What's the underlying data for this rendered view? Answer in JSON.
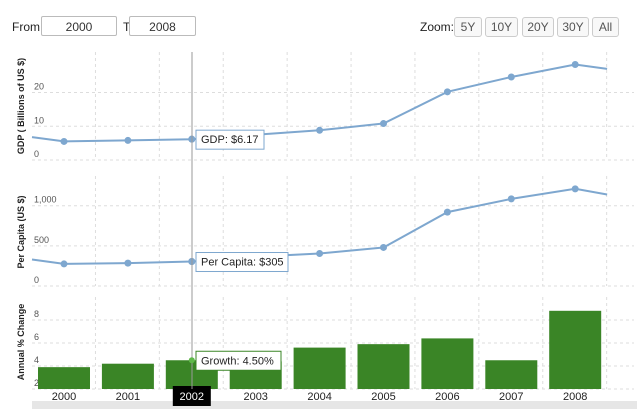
{
  "range": {
    "from_label": "From:",
    "from_value": "2000",
    "to_label": "To:",
    "to_value": "2008"
  },
  "zoom": {
    "label": "Zoom:",
    "buttons": [
      "5Y",
      "10Y",
      "20Y",
      "30Y",
      "All"
    ]
  },
  "colors": {
    "line": "#7ea7cf",
    "bar": "#3a8526",
    "grid": "#dddddd",
    "crosshair": "#999999"
  },
  "chart_data": [
    {
      "type": "line",
      "ylabel": "GDP ( Billions of US $)",
      "ylim": [
        0,
        32
      ],
      "yticks": [
        0,
        10,
        20
      ],
      "x": [
        1999.5,
        2000,
        2001,
        2002,
        2003,
        2004,
        2005,
        2006,
        2007,
        2008,
        2008.5
      ],
      "values": [
        6.8,
        5.5,
        5.8,
        6.17,
        7.5,
        8.8,
        10.8,
        20.2,
        24.6,
        28.3,
        27.0
      ],
      "marker_x": [
        2000,
        2001,
        2002,
        2004,
        2005,
        2006,
        2007,
        2008
      ],
      "tooltip": "GDP: $6.17"
    },
    {
      "type": "line",
      "ylabel": "Per Capita (US $)",
      "ylim": [
        0,
        1370
      ],
      "yticks": [
        0,
        500,
        1000
      ],
      "x": [
        1999.5,
        2000,
        2001,
        2002,
        2003,
        2004,
        2005,
        2006,
        2007,
        2008,
        2008.5
      ],
      "values": [
        330,
        275,
        285,
        305,
        365,
        405,
        480,
        920,
        1085,
        1210,
        1140
      ],
      "marker_x": [
        2000,
        2001,
        2002,
        2004,
        2005,
        2006,
        2007,
        2008
      ],
      "tooltip": "Per Capita: $305"
    },
    {
      "type": "bar",
      "ylabel": "Annual % Change",
      "ylim": [
        2,
        10
      ],
      "yticks": [
        2,
        4,
        6,
        8
      ],
      "categories": [
        "2000",
        "2001",
        "2002",
        "2003",
        "2004",
        "2005",
        "2006",
        "2007",
        "2008"
      ],
      "values": [
        3.9,
        4.2,
        4.5,
        4.4,
        5.6,
        5.9,
        6.4,
        4.5,
        8.8
      ],
      "tooltip": "Growth: 4.50%"
    }
  ],
  "x_axis": {
    "labels": [
      "2000",
      "2001",
      "2002",
      "2003",
      "2004",
      "2005",
      "2006",
      "2007",
      "2008"
    ],
    "highlighted": "2002"
  }
}
